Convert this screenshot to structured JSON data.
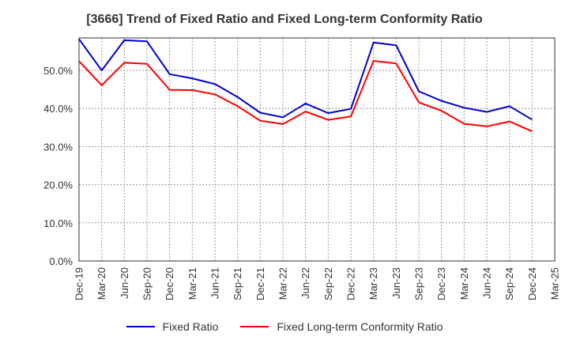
{
  "title": "[3666]  Trend of Fixed Ratio and Fixed Long-term Conformity Ratio",
  "chart_data": {
    "type": "line",
    "categories": [
      "Dec-19",
      "Mar-20",
      "Jun-20",
      "Sep-20",
      "Dec-20",
      "Mar-21",
      "Jun-21",
      "Sep-21",
      "Dec-21",
      "Mar-22",
      "Jun-22",
      "Sep-22",
      "Dec-22",
      "Mar-23",
      "Jun-23",
      "Sep-23",
      "Dec-23",
      "Mar-24",
      "Jun-24",
      "Sep-24",
      "Dec-24",
      "Mar-25"
    ],
    "series": [
      {
        "name": "Fixed Ratio",
        "color": "#0000cc",
        "values": [
          58.2,
          50.0,
          57.9,
          57.6,
          49.0,
          47.9,
          46.4,
          43.0,
          38.9,
          37.7,
          41.3,
          38.8,
          39.9,
          57.3,
          56.6,
          44.5,
          42.0,
          40.2,
          39.1,
          40.6,
          37.1,
          null
        ]
      },
      {
        "name": "Fixed Long-term Conformity Ratio",
        "color": "#ff0000",
        "values": [
          52.4,
          46.1,
          52.0,
          51.7,
          44.9,
          44.8,
          43.7,
          40.6,
          36.8,
          35.9,
          39.2,
          37.0,
          37.9,
          52.5,
          51.8,
          41.6,
          39.4,
          36.0,
          35.3,
          36.6,
          34.0,
          null
        ]
      }
    ],
    "ytick_labels": [
      "0.0%",
      "10.0%",
      "20.0%",
      "30.0%",
      "40.0%",
      "50.0%"
    ],
    "ylim": [
      0,
      58.5
    ],
    "grid": true,
    "legend_position": "bottom"
  }
}
